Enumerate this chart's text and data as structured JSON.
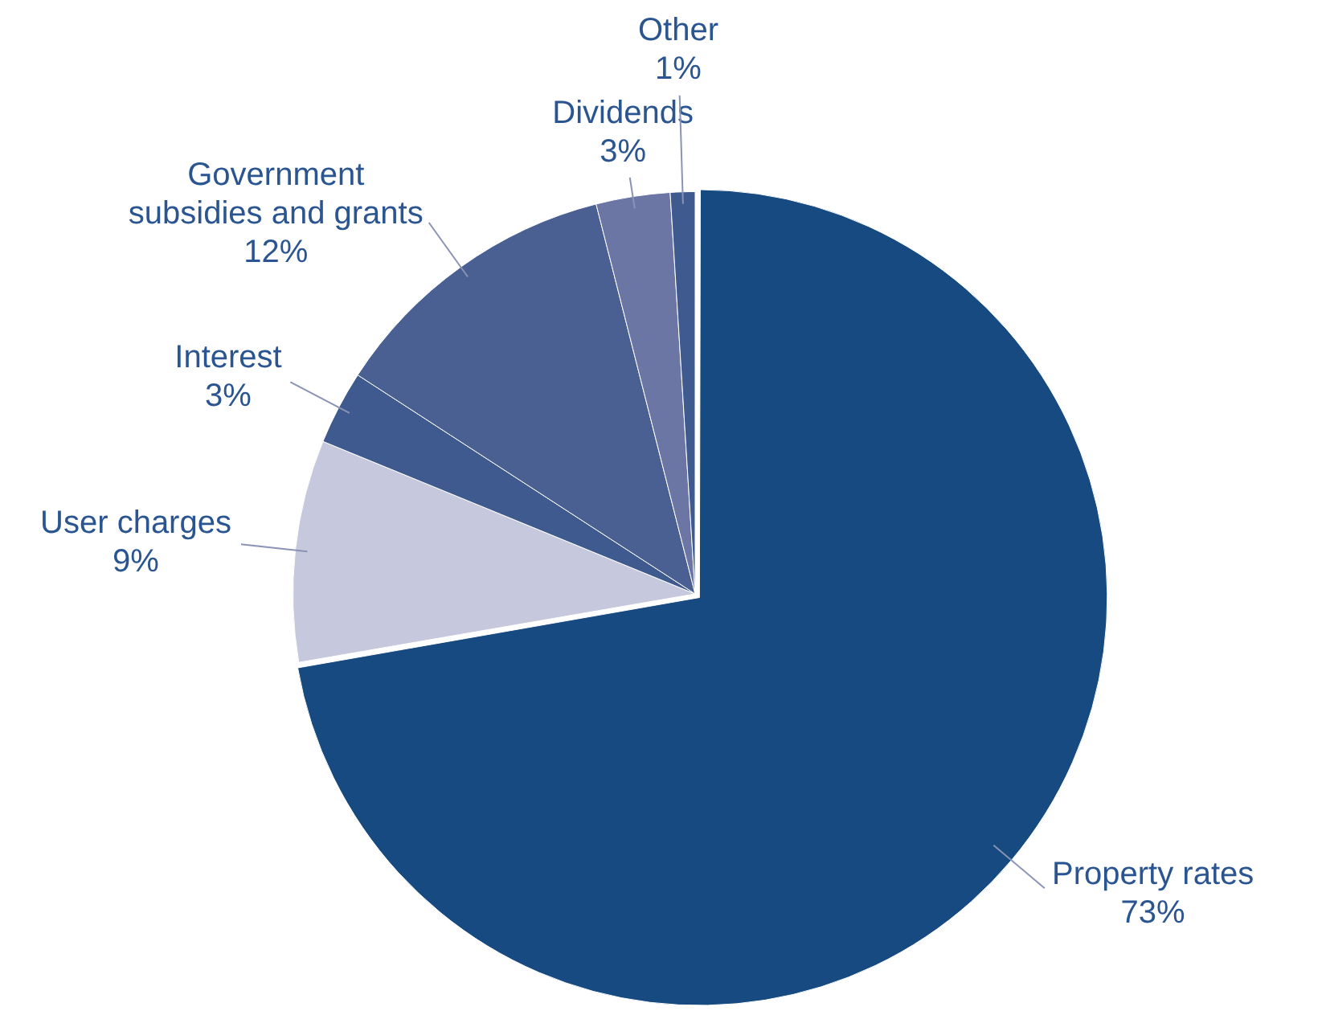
{
  "chart_data": {
    "type": "pie",
    "categories": [
      "Property rates",
      "User charges",
      "Interest",
      "Government subsidies and grants",
      "Dividends",
      "Other"
    ],
    "values": [
      73,
      9,
      3,
      12,
      3,
      1
    ],
    "value_labels": [
      "73%",
      "9%",
      "3%",
      "12%",
      "3%",
      "1%"
    ],
    "colors": [
      "#164a80",
      "#c6c9dd",
      "#3f5a8f",
      "#4a5f92",
      "#6c76a4",
      "#3f5a8f"
    ],
    "legend": false
  }
}
